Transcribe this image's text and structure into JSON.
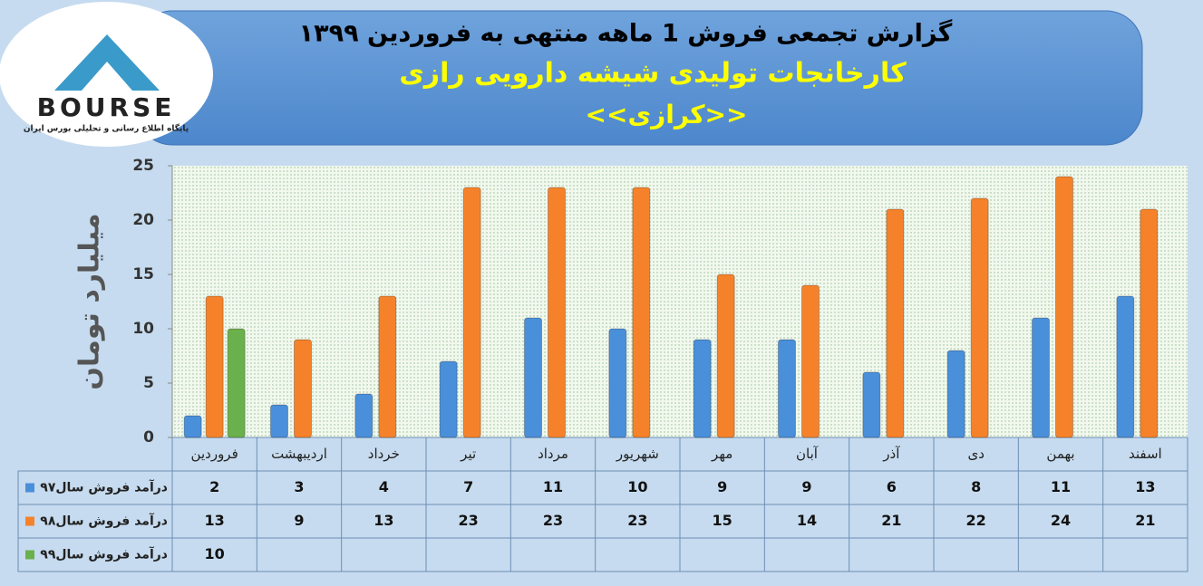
{
  "chart_data": {
    "type": "bar",
    "title": "گزارش تجمعی فروش 1 ماهه منتهی به فروردین ۱۳۹۹",
    "subtitle": "کارخانجات تولیدی شیشه دارویی رازی",
    "symbol": "<<کرازی>>",
    "y_label": "میلیارد تومان",
    "categories": [
      "فروردین",
      "اردیبهشت",
      "خرداد",
      "تیر",
      "مرداد",
      "شهریور",
      "مهر",
      "آبان",
      "آذر",
      "دی",
      "بهمن",
      "اسفند"
    ],
    "series": [
      {
        "name": "درآمد فروش سال۹۷",
        "color": "#4a8fd9",
        "values": [
          2,
          3,
          4,
          7,
          11,
          10,
          9,
          9,
          6,
          8,
          11,
          13
        ]
      },
      {
        "name": "درآمد فروش سال۹۸",
        "color": "#f5822a",
        "values": [
          13,
          9,
          13,
          23,
          23,
          23,
          15,
          14,
          21,
          22,
          24,
          21
        ]
      },
      {
        "name": "درآمد فروش سال۹۹",
        "color": "#6ab04c",
        "values": [
          10,
          null,
          null,
          null,
          null,
          null,
          null,
          null,
          null,
          null,
          null,
          null
        ]
      }
    ],
    "ylim": [
      0,
      25
    ],
    "yticks": [
      0,
      5,
      10,
      15,
      20,
      25
    ]
  },
  "logo": {
    "text": "BOURSE",
    "caption": "پایگاه اطلاع رسانی و تحلیلی بورس ایران"
  }
}
